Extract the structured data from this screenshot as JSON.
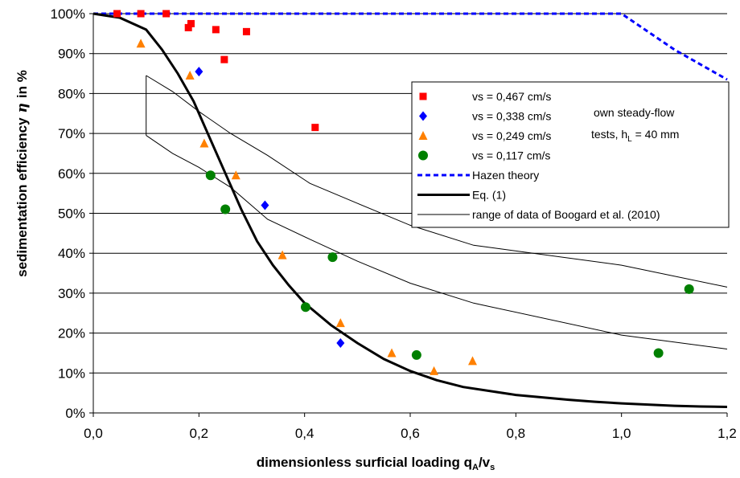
{
  "chart_data": {
    "type": "scatter",
    "xlabel": "dimensionless surficial loading q",
    "xlabel_sub": "A",
    "xlabel_tail": "/v",
    "xlabel_sub2": "s",
    "ylabel": "sedimentation efficiency",
    "ylabel_symbol": "η",
    "ylabel_tail": "in %",
    "xlim": [
      0,
      1.2
    ],
    "ylim": [
      0,
      100
    ],
    "x_ticks": [
      0.0,
      0.2,
      0.4,
      0.6,
      0.8,
      1.0,
      1.2
    ],
    "x_tick_labels": [
      "0,0",
      "0,2",
      "0,4",
      "0,6",
      "0,8",
      "1,0",
      "1,2"
    ],
    "y_ticks": [
      0,
      10,
      20,
      30,
      40,
      50,
      60,
      70,
      80,
      90,
      100
    ],
    "y_tick_labels": [
      "0%",
      "10%",
      "20%",
      "30%",
      "40%",
      "50%",
      "60%",
      "70%",
      "80%",
      "90%",
      "100%"
    ],
    "grid": "horizontal",
    "legend_position": "right",
    "note": {
      "line1": "own steady-flow",
      "line2_prefix": "tests, h",
      "line2_sub": "L",
      "line2_suffix": " = 40 mm"
    },
    "series": [
      {
        "name": "vs = 0,467 cm/s",
        "kind": "markers",
        "marker": "square",
        "color": "#ff0000",
        "points": [
          [
            0.045,
            100
          ],
          [
            0.09,
            100
          ],
          [
            0.138,
            100
          ],
          [
            0.18,
            96.5
          ],
          [
            0.185,
            97.5
          ],
          [
            0.232,
            96
          ],
          [
            0.248,
            88.5
          ],
          [
            0.29,
            95.5
          ],
          [
            0.42,
            71.5
          ]
        ]
      },
      {
        "name": "vs = 0,338 cm/s",
        "kind": "markers",
        "marker": "diamond",
        "color": "#0000ff",
        "points": [
          [
            0.2,
            85.5
          ],
          [
            0.325,
            52
          ],
          [
            0.468,
            17.5
          ]
        ]
      },
      {
        "name": "vs = 0,249 cm/s",
        "kind": "markers",
        "marker": "triangle",
        "color": "#ff8000",
        "points": [
          [
            0.09,
            92.5
          ],
          [
            0.183,
            84.5
          ],
          [
            0.21,
            67.5
          ],
          [
            0.27,
            59.5
          ],
          [
            0.358,
            39.5
          ],
          [
            0.468,
            22.5
          ],
          [
            0.565,
            15
          ],
          [
            0.645,
            10.5
          ],
          [
            0.718,
            13
          ]
        ]
      },
      {
        "name": "vs = 0,117 cm/s",
        "kind": "markers",
        "marker": "circle",
        "color": "#008000",
        "points": [
          [
            0.222,
            59.5
          ],
          [
            0.25,
            51
          ],
          [
            0.402,
            26.5
          ],
          [
            0.453,
            39
          ],
          [
            0.612,
            14.5
          ],
          [
            1.07,
            15
          ],
          [
            1.128,
            31
          ]
        ]
      },
      {
        "name": "Hazen theory",
        "kind": "line",
        "style": "dashed",
        "color": "#0000ff",
        "points": [
          [
            0.0,
            100
          ],
          [
            1.0,
            100
          ],
          [
            1.1,
            91
          ],
          [
            1.2,
            83.5
          ]
        ]
      },
      {
        "name": "Eq. (1)",
        "kind": "line",
        "style": "thick",
        "color": "#000000",
        "points": [
          [
            0.0,
            100
          ],
          [
            0.05,
            99
          ],
          [
            0.1,
            96
          ],
          [
            0.13,
            91
          ],
          [
            0.16,
            85
          ],
          [
            0.19,
            78
          ],
          [
            0.22,
            69
          ],
          [
            0.25,
            60
          ],
          [
            0.28,
            51
          ],
          [
            0.31,
            43
          ],
          [
            0.34,
            37
          ],
          [
            0.37,
            32
          ],
          [
            0.4,
            27.5
          ],
          [
            0.45,
            22
          ],
          [
            0.5,
            17.5
          ],
          [
            0.55,
            13.5
          ],
          [
            0.6,
            10.5
          ],
          [
            0.65,
            8.2
          ],
          [
            0.7,
            6.5
          ],
          [
            0.8,
            4.5
          ],
          [
            0.9,
            3.3
          ],
          [
            0.95,
            2.8
          ],
          [
            1.0,
            2.4
          ],
          [
            1.05,
            2.1
          ],
          [
            1.1,
            1.8
          ],
          [
            1.15,
            1.6
          ],
          [
            1.2,
            1.5
          ]
        ]
      },
      {
        "name": "range of data of Boogard et al. (2010)",
        "kind": "line",
        "style": "thin",
        "color": "#000000",
        "segments": [
          [
            [
              0.1,
              84.5
            ],
            [
              0.15,
              80.5
            ],
            [
              0.2,
              75.5
            ],
            [
              0.26,
              70
            ],
            [
              0.33,
              64.5
            ],
            [
              0.41,
              57.5
            ],
            [
              0.5,
              52.5
            ],
            [
              0.6,
              47
            ],
            [
              0.72,
              42
            ],
            [
              1.0,
              37
            ],
            [
              1.2,
              31.5
            ]
          ],
          [
            [
              0.1,
              69.5
            ],
            [
              0.15,
              65
            ],
            [
              0.2,
              61.5
            ],
            [
              0.26,
              56.5
            ],
            [
              0.33,
              48.5
            ],
            [
              0.41,
              43.5
            ],
            [
              0.5,
              38
            ],
            [
              0.6,
              32.5
            ],
            [
              0.72,
              27.5
            ],
            [
              1.0,
              19.5
            ],
            [
              1.2,
              16
            ]
          ],
          [
            [
              0.1,
              84.5
            ],
            [
              0.1,
              69.5
            ]
          ]
        ]
      }
    ]
  }
}
